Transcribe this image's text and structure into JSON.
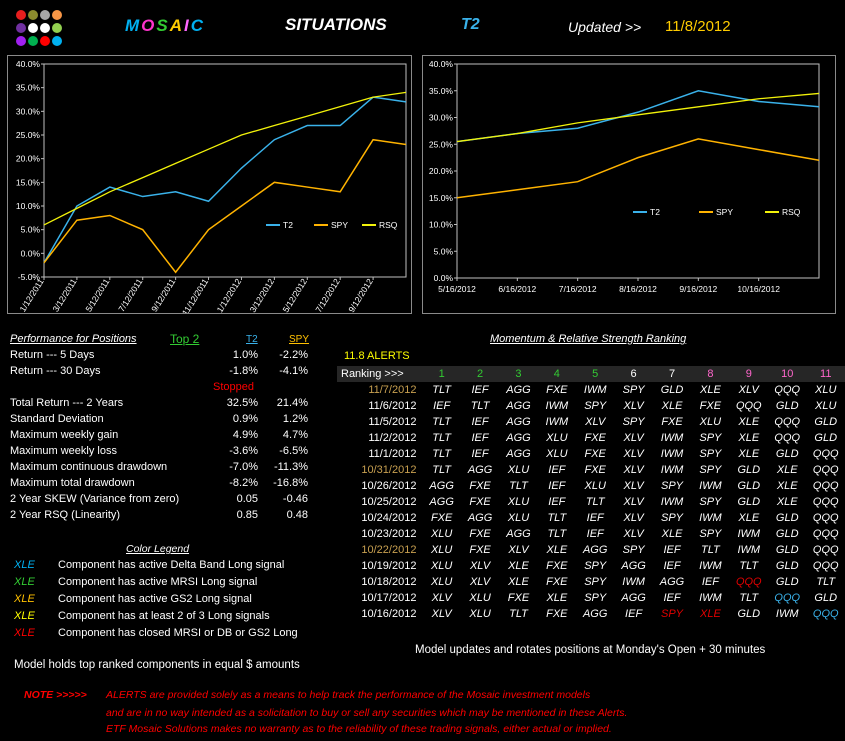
{
  "header": {
    "brand": "MOSAIC",
    "brand_colors": [
      "#00b0f0",
      "#ff33cc",
      "#33cc33",
      "#ffcc00",
      "#ff66ff",
      "#00b0f0"
    ],
    "situations": "SITUATIONS",
    "model": "T2",
    "updated_label": "Updated >>",
    "updated_date": "11/8/2012"
  },
  "logo": {
    "dot_colors": [
      "#e61e1e",
      "#8c8c2e",
      "#a6a6a6",
      "#f79646",
      "#7030a0",
      "#ffffff",
      "#ffffff",
      "#92d050",
      "#a020f0",
      "#00b050",
      "#ff0000",
      "#00b0f0"
    ]
  },
  "chart_data": [
    {
      "type": "line",
      "title": "",
      "x": [
        "1/12/2011",
        "3/12/2011",
        "5/12/2011",
        "7/12/2011",
        "9/12/2011",
        "11/12/2011",
        "1/12/2012",
        "3/12/2012",
        "5/12/2012",
        "7/12/2012",
        "9/12/2012",
        "11/7/2012"
      ],
      "series": [
        {
          "name": "T2",
          "color": "#3ab2ea",
          "values": [
            -2,
            10,
            14,
            12,
            13,
            11,
            18,
            24,
            27,
            27,
            33,
            32
          ]
        },
        {
          "name": "SPY",
          "color": "#ffb300",
          "values": [
            -2,
            7,
            8,
            5,
            -4,
            5,
            10,
            15,
            14,
            13,
            24,
            23
          ]
        },
        {
          "name": "RSQ",
          "color": "#f2f20a",
          "values": [
            6,
            9.5,
            13,
            16,
            19,
            22,
            25,
            27,
            29,
            31,
            33,
            34
          ]
        }
      ],
      "ylim": [
        -5,
        40
      ],
      "yticks": [
        "40.0%",
        "35.0%",
        "30.0%",
        "25.0%",
        "20.0%",
        "15.0%",
        "10.0%",
        "5.0%",
        "0.0%",
        "-5.0%"
      ],
      "xticks": [
        "1/12/2011",
        "3/12/2011",
        "5/12/2011",
        "7/12/2011",
        "9/12/2011",
        "11/12/2011",
        "1/12/2012",
        "3/12/2012",
        "5/12/2012",
        "7/12/2012",
        "9/12/2012"
      ],
      "legend": [
        "T2",
        "SPY",
        "RSQ"
      ]
    },
    {
      "type": "line",
      "title": "",
      "x": [
        "5/16/2012",
        "6/16/2012",
        "7/16/2012",
        "8/16/2012",
        "9/16/2012",
        "10/16/2012",
        "11/7/2012"
      ],
      "series": [
        {
          "name": "T2",
          "color": "#3ab2ea",
          "values": [
            25.5,
            27,
            28,
            31,
            35,
            33,
            32
          ]
        },
        {
          "name": "SPY",
          "color": "#ffb300",
          "values": [
            15,
            16.5,
            18,
            22.5,
            26,
            24,
            22
          ]
        },
        {
          "name": "RSQ",
          "color": "#f2f20a",
          "values": [
            25.5,
            27,
            29,
            30.5,
            32,
            33.5,
            34.5
          ]
        }
      ],
      "ylim": [
        0,
        40
      ],
      "yticks": [
        "40.0%",
        "35.0%",
        "30.0%",
        "25.0%",
        "20.0%",
        "15.0%",
        "10.0%",
        "5.0%",
        "0.0%"
      ],
      "xticks": [
        "5/16/2012",
        "6/16/2012",
        "7/16/2012",
        "8/16/2012",
        "9/16/2012",
        "10/16/2012"
      ],
      "legend": [
        "T2",
        "SPY",
        "RSQ"
      ]
    }
  ],
  "performance": {
    "title": "Performance for Positions",
    "top_label": "Top 2",
    "col_t2": "T2",
    "col_spy": "SPY",
    "rows": [
      {
        "label": "Return --- 5 Days",
        "t2": "1.0%",
        "spy": "-2.2%"
      },
      {
        "label": "Return --- 30 Days",
        "t2": "-1.8%",
        "spy": "-4.1%"
      }
    ],
    "stopped": "Stopped",
    "rows2": [
      {
        "label": "Total Return --- 2 Years",
        "t2": "32.5%",
        "spy": "21.4%"
      },
      {
        "label": "Standard Deviation",
        "t2": "0.9%",
        "spy": "1.2%"
      },
      {
        "label": "Maximum weekly gain",
        "t2": "4.9%",
        "spy": "4.7%"
      },
      {
        "label": "Maximum weekly loss",
        "t2": "-3.6%",
        "spy": "-6.5%"
      },
      {
        "label": "Maximum continuous drawdown",
        "t2": "-7.0%",
        "spy": "-11.3%"
      },
      {
        "label": "Maximum total drawdown",
        "t2": "-8.2%",
        "spy": "-16.8%"
      },
      {
        "label": "2 Year SKEW  (Variance from zero)",
        "t2": "0.05",
        "spy": "-0.46"
      },
      {
        "label": "2 Year RSQ  (Linearity)",
        "t2": "0.85",
        "spy": "0.48"
      }
    ]
  },
  "legend_section": {
    "title": "Color Legend",
    "items": [
      {
        "sym": "XLE",
        "color": "#00b0f0",
        "text": "Component has active Delta Band Long signal"
      },
      {
        "sym": "XLE",
        "color": "#33cc33",
        "text": "Component has active MRSI Long signal"
      },
      {
        "sym": "XLE",
        "color": "#ffc000",
        "text": "Component has active GS2 Long signal"
      },
      {
        "sym": "XLE",
        "color": "#ffff00",
        "text": "Component has at least 2 of 3 Long signals"
      },
      {
        "sym": "XLE",
        "color": "#ff0000",
        "text": "Component has closed MRSI or DB or GS2 Long"
      }
    ]
  },
  "model_holds": "Model holds top ranked  components in equal  $ amounts",
  "model_updates": "Model updates and rotates positions at Monday's Open + 30 minutes",
  "ranking": {
    "title": "Momentum & Relative Strength Ranking",
    "alerts": "11.8  ALERTS",
    "ranking_label": "Ranking  >>>",
    "columns": [
      "1",
      "2",
      "3",
      "4",
      "5",
      "6",
      "7",
      "8",
      "9",
      "10",
      "11"
    ],
    "column_colors": [
      "#33cc33",
      "#33cc33",
      "#33cc33",
      "#33cc33",
      "#33cc33",
      "#ffffff",
      "#ffffff",
      "#ff66cc",
      "#ff66cc",
      "#ff66cc",
      "#ff66cc"
    ],
    "rows": [
      {
        "date": "11/7/2012",
        "date_color": "#c8a050",
        "cells": [
          [
            "TLT",
            "#ffffff"
          ],
          [
            "IEF",
            "#ffffff"
          ],
          [
            "AGG",
            "#ffffff"
          ],
          [
            "FXE",
            "#ffffff"
          ],
          [
            "IWM",
            "#ffffff"
          ],
          [
            "SPY",
            "#ffffff"
          ],
          [
            "GLD",
            "#ffffff"
          ],
          [
            "XLE",
            "#ffffff"
          ],
          [
            "XLV",
            "#ffffff"
          ],
          [
            "QQQ",
            "#ffffff"
          ],
          [
            "XLU",
            "#ffffff"
          ]
        ]
      },
      {
        "date": "11/6/2012",
        "date_color": "#ffffff",
        "cells": [
          [
            "IEF",
            "#ffffff"
          ],
          [
            "TLT",
            "#ffffff"
          ],
          [
            "AGG",
            "#ffffff"
          ],
          [
            "IWM",
            "#ffffff"
          ],
          [
            "SPY",
            "#ffffff"
          ],
          [
            "XLV",
            "#ffffff"
          ],
          [
            "XLE",
            "#ffffff"
          ],
          [
            "FXE",
            "#ffffff"
          ],
          [
            "QQQ",
            "#ffffff"
          ],
          [
            "GLD",
            "#ffffff"
          ],
          [
            "XLU",
            "#ffffff"
          ]
        ]
      },
      {
        "date": "11/5/2012",
        "date_color": "#ffffff",
        "cells": [
          [
            "TLT",
            "#ffffff"
          ],
          [
            "IEF",
            "#ffffff"
          ],
          [
            "AGG",
            "#ffffff"
          ],
          [
            "IWM",
            "#ffffff"
          ],
          [
            "XLV",
            "#ffffff"
          ],
          [
            "SPY",
            "#ffffff"
          ],
          [
            "FXE",
            "#ffffff"
          ],
          [
            "XLU",
            "#ffffff"
          ],
          [
            "XLE",
            "#ffffff"
          ],
          [
            "QQQ",
            "#ffffff"
          ],
          [
            "GLD",
            "#ffffff"
          ]
        ]
      },
      {
        "date": "11/2/2012",
        "date_color": "#ffffff",
        "cells": [
          [
            "TLT",
            "#ffffff"
          ],
          [
            "IEF",
            "#ffffff"
          ],
          [
            "AGG",
            "#ffffff"
          ],
          [
            "XLU",
            "#ffffff"
          ],
          [
            "FXE",
            "#ffffff"
          ],
          [
            "XLV",
            "#ffffff"
          ],
          [
            "IWM",
            "#ffffff"
          ],
          [
            "SPY",
            "#ffffff"
          ],
          [
            "XLE",
            "#ffffff"
          ],
          [
            "QQQ",
            "#ffffff"
          ],
          [
            "GLD",
            "#ffffff"
          ]
        ]
      },
      {
        "date": "11/1/2012",
        "date_color": "#ffffff",
        "cells": [
          [
            "TLT",
            "#ffffff"
          ],
          [
            "IEF",
            "#ffffff"
          ],
          [
            "AGG",
            "#ffffff"
          ],
          [
            "XLU",
            "#ffffff"
          ],
          [
            "FXE",
            "#ffffff"
          ],
          [
            "XLV",
            "#ffffff"
          ],
          [
            "IWM",
            "#ffffff"
          ],
          [
            "SPY",
            "#ffffff"
          ],
          [
            "XLE",
            "#ffffff"
          ],
          [
            "GLD",
            "#ffffff"
          ],
          [
            "QQQ",
            "#ffffff"
          ]
        ]
      },
      {
        "date": "10/31/2012",
        "date_color": "#c8a050",
        "cells": [
          [
            "TLT",
            "#ffffff"
          ],
          [
            "AGG",
            "#ffffff"
          ],
          [
            "XLU",
            "#ffffff"
          ],
          [
            "IEF",
            "#ffffff"
          ],
          [
            "FXE",
            "#ffffff"
          ],
          [
            "XLV",
            "#ffffff"
          ],
          [
            "IWM",
            "#ffffff"
          ],
          [
            "SPY",
            "#ffffff"
          ],
          [
            "GLD",
            "#ffffff"
          ],
          [
            "XLE",
            "#ffffff"
          ],
          [
            "QQQ",
            "#ffffff"
          ]
        ]
      },
      {
        "date": "10/26/2012",
        "date_color": "#ffffff",
        "cells": [
          [
            "AGG",
            "#ffffff"
          ],
          [
            "FXE",
            "#ffffff"
          ],
          [
            "TLT",
            "#ffffff"
          ],
          [
            "IEF",
            "#ffffff"
          ],
          [
            "XLU",
            "#ffffff"
          ],
          [
            "XLV",
            "#ffffff"
          ],
          [
            "SPY",
            "#ffffff"
          ],
          [
            "IWM",
            "#ffffff"
          ],
          [
            "GLD",
            "#ffffff"
          ],
          [
            "XLE",
            "#ffffff"
          ],
          [
            "QQQ",
            "#ffffff"
          ]
        ]
      },
      {
        "date": "10/25/2012",
        "date_color": "#ffffff",
        "cells": [
          [
            "AGG",
            "#ffffff"
          ],
          [
            "FXE",
            "#ffffff"
          ],
          [
            "XLU",
            "#ffffff"
          ],
          [
            "IEF",
            "#ffffff"
          ],
          [
            "TLT",
            "#ffffff"
          ],
          [
            "XLV",
            "#ffffff"
          ],
          [
            "IWM",
            "#ffffff"
          ],
          [
            "SPY",
            "#ffffff"
          ],
          [
            "GLD",
            "#ffffff"
          ],
          [
            "XLE",
            "#ffffff"
          ],
          [
            "QQQ",
            "#ffffff"
          ]
        ]
      },
      {
        "date": "10/24/2012",
        "date_color": "#ffffff",
        "cells": [
          [
            "FXE",
            "#ffffff"
          ],
          [
            "AGG",
            "#ffffff"
          ],
          [
            "XLU",
            "#ffffff"
          ],
          [
            "TLT",
            "#ffffff"
          ],
          [
            "IEF",
            "#ffffff"
          ],
          [
            "XLV",
            "#ffffff"
          ],
          [
            "SPY",
            "#ffffff"
          ],
          [
            "IWM",
            "#ffffff"
          ],
          [
            "XLE",
            "#ffffff"
          ],
          [
            "GLD",
            "#ffffff"
          ],
          [
            "QQQ",
            "#ffffff"
          ]
        ]
      },
      {
        "date": "10/23/2012",
        "date_color": "#ffffff",
        "cells": [
          [
            "XLU",
            "#ffffff"
          ],
          [
            "FXE",
            "#ffffff"
          ],
          [
            "AGG",
            "#ffffff"
          ],
          [
            "TLT",
            "#ffffff"
          ],
          [
            "IEF",
            "#ffffff"
          ],
          [
            "XLV",
            "#ffffff"
          ],
          [
            "XLE",
            "#ffffff"
          ],
          [
            "SPY",
            "#ffffff"
          ],
          [
            "IWM",
            "#ffffff"
          ],
          [
            "GLD",
            "#ffffff"
          ],
          [
            "QQQ",
            "#ffffff"
          ]
        ]
      },
      {
        "date": "10/22/2012",
        "date_color": "#c8a050",
        "cells": [
          [
            "XLU",
            "#ffffff"
          ],
          [
            "FXE",
            "#ffffff"
          ],
          [
            "XLV",
            "#ffffff"
          ],
          [
            "XLE",
            "#ffffff"
          ],
          [
            "AGG",
            "#ffffff"
          ],
          [
            "SPY",
            "#ffffff"
          ],
          [
            "IEF",
            "#ffffff"
          ],
          [
            "TLT",
            "#ffffff"
          ],
          [
            "IWM",
            "#ffffff"
          ],
          [
            "GLD",
            "#ffffff"
          ],
          [
            "QQQ",
            "#ffffff"
          ]
        ]
      },
      {
        "date": "10/19/2012",
        "date_color": "#ffffff",
        "cells": [
          [
            "XLU",
            "#ffffff"
          ],
          [
            "XLV",
            "#ffffff"
          ],
          [
            "XLE",
            "#ffffff"
          ],
          [
            "FXE",
            "#ffffff"
          ],
          [
            "SPY",
            "#ffffff"
          ],
          [
            "AGG",
            "#ffffff"
          ],
          [
            "IEF",
            "#ffffff"
          ],
          [
            "IWM",
            "#ffffff"
          ],
          [
            "TLT",
            "#ffffff"
          ],
          [
            "GLD",
            "#ffffff"
          ],
          [
            "QQQ",
            "#ffffff"
          ]
        ]
      },
      {
        "date": "10/18/2012",
        "date_color": "#ffffff",
        "cells": [
          [
            "XLU",
            "#ffffff"
          ],
          [
            "XLV",
            "#ffffff"
          ],
          [
            "XLE",
            "#ffffff"
          ],
          [
            "FXE",
            "#ffffff"
          ],
          [
            "SPY",
            "#ffffff"
          ],
          [
            "IWM",
            "#ffffff"
          ],
          [
            "AGG",
            "#ffffff"
          ],
          [
            "IEF",
            "#ffffff"
          ],
          [
            "QQQ",
            "#e00000"
          ],
          [
            "GLD",
            "#ffffff"
          ],
          [
            "TLT",
            "#ffffff"
          ]
        ]
      },
      {
        "date": "10/17/2012",
        "date_color": "#ffffff",
        "cells": [
          [
            "XLV",
            "#ffffff"
          ],
          [
            "XLU",
            "#ffffff"
          ],
          [
            "FXE",
            "#ffffff"
          ],
          [
            "XLE",
            "#ffffff"
          ],
          [
            "SPY",
            "#ffffff"
          ],
          [
            "AGG",
            "#ffffff"
          ],
          [
            "IEF",
            "#ffffff"
          ],
          [
            "IWM",
            "#ffffff"
          ],
          [
            "TLT",
            "#ffffff"
          ],
          [
            "QQQ",
            "#3ab2ea"
          ],
          [
            "GLD",
            "#ffffff"
          ]
        ]
      },
      {
        "date": "10/16/2012",
        "date_color": "#ffffff",
        "cells": [
          [
            "XLV",
            "#ffffff"
          ],
          [
            "XLU",
            "#ffffff"
          ],
          [
            "TLT",
            "#ffffff"
          ],
          [
            "FXE",
            "#ffffff"
          ],
          [
            "AGG",
            "#ffffff"
          ],
          [
            "IEF",
            "#ffffff"
          ],
          [
            "SPY",
            "#e00000"
          ],
          [
            "XLE",
            "#e00000"
          ],
          [
            "GLD",
            "#ffffff"
          ],
          [
            "IWM",
            "#ffffff"
          ],
          [
            "QQQ",
            "#3ab2ea"
          ]
        ]
      }
    ]
  },
  "note": {
    "label": "NOTE  >>>>>",
    "lines": [
      "ALERTS are provided solely as a means to help track the performance of the Mosaic investment models",
      "and are in no way intended as a solicitation to buy or sell any securities which may be mentioned in these Alerts.",
      "ETF Mosaic Solutions makes no warranty as to the reliability of these trading signals, either actual or implied."
    ]
  }
}
